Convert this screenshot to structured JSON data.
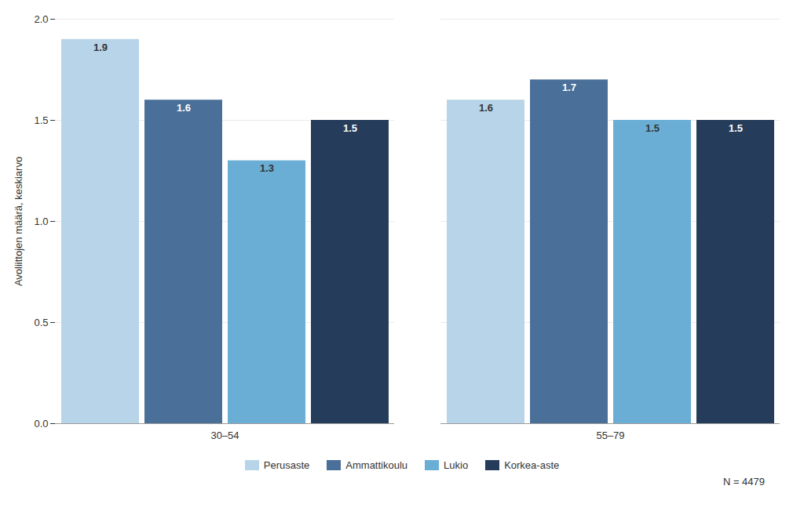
{
  "chart_data": {
    "type": "bar",
    "categories": [
      "30–54",
      "55–79"
    ],
    "series": [
      {
        "name": "Perusaste",
        "color": "#b8d4e8",
        "values": [
          1.9,
          1.6
        ]
      },
      {
        "name": "Ammattikoulu",
        "color": "#4a7099",
        "values": [
          1.6,
          1.7
        ]
      },
      {
        "name": "Lukio",
        "color": "#6aaed6",
        "values": [
          1.3,
          1.5
        ]
      },
      {
        "name": "Korkea-aste",
        "color": "#253d5a",
        "values": [
          1.5,
          1.5
        ]
      }
    ],
    "ylabel": "Avoliittojen määrä, keskiarvo",
    "ylim": [
      0.0,
      2.0
    ],
    "yticks": [
      {
        "value": 0.0,
        "label": "0.0"
      },
      0.5,
      {
        "value": 1.0,
        "label": "1.0"
      },
      1.5,
      {
        "value": 2.0,
        "label": "2.0"
      }
    ],
    "grid": true,
    "legend": "bottom",
    "data_labels": true,
    "annotations": [
      "N = 4479"
    ]
  }
}
